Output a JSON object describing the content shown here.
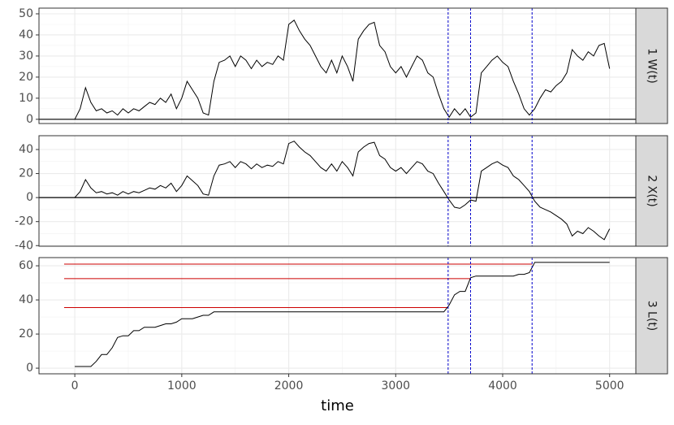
{
  "chart_data": [
    {
      "type": "line",
      "title": "1 W(t)",
      "x": [
        0,
        50,
        100,
        150,
        200,
        250,
        300,
        350,
        400,
        450,
        500,
        550,
        600,
        650,
        700,
        750,
        800,
        850,
        900,
        950,
        1000,
        1050,
        1100,
        1150,
        1200,
        1250,
        1300,
        1350,
        1400,
        1450,
        1500,
        1550,
        1600,
        1650,
        1700,
        1750,
        1800,
        1850,
        1900,
        1950,
        2000,
        2050,
        2100,
        2150,
        2200,
        2250,
        2300,
        2350,
        2400,
        2450,
        2500,
        2550,
        2600,
        2650,
        2700,
        2750,
        2800,
        2850,
        2900,
        2950,
        3000,
        3050,
        3100,
        3150,
        3200,
        3250,
        3300,
        3350,
        3400,
        3450,
        3500,
        3550,
        3600,
        3650,
        3700,
        3750,
        3800,
        3850,
        3900,
        3950,
        4000,
        4050,
        4100,
        4150,
        4200,
        4250,
        4300,
        4350,
        4400,
        4450,
        4500,
        4550,
        4600,
        4650,
        4700,
        4750,
        4800,
        4850,
        4900,
        4950,
        5000
      ],
      "series": [
        {
          "color": "#000000",
          "values": [
            0,
            5,
            15,
            8,
            4,
            5,
            3,
            4,
            2,
            5,
            3,
            5,
            4,
            6,
            8,
            7,
            10,
            8,
            12,
            5,
            10,
            18,
            14,
            10,
            3,
            2,
            18,
            27,
            28,
            30,
            25,
            30,
            28,
            24,
            28,
            25,
            27,
            26,
            30,
            28,
            45,
            47,
            42,
            38,
            35,
            30,
            25,
            22,
            28,
            22,
            30,
            25,
            18,
            38,
            42,
            45,
            46,
            35,
            32,
            25,
            22,
            25,
            20,
            25,
            30,
            28,
            22,
            20,
            12,
            5,
            1,
            5,
            2,
            5,
            1,
            3,
            22,
            25,
            28,
            30,
            27,
            25,
            18,
            12,
            5,
            2,
            5,
            10,
            14,
            13,
            16,
            18,
            22,
            33,
            30,
            28,
            32,
            30,
            35,
            36,
            24
          ]
        }
      ],
      "ylim": [
        -2,
        52.7
      ],
      "yticks": [
        0,
        10,
        20,
        30,
        40,
        50
      ],
      "hline": 0,
      "vlines": [
        3490,
        3700,
        4275
      ],
      "vline_color": "#0000cc"
    },
    {
      "type": "line",
      "title": "2 X(t)",
      "x": [
        0,
        50,
        100,
        150,
        200,
        250,
        300,
        350,
        400,
        450,
        500,
        550,
        600,
        650,
        700,
        750,
        800,
        850,
        900,
        950,
        1000,
        1050,
        1100,
        1150,
        1200,
        1250,
        1300,
        1350,
        1400,
        1450,
        1500,
        1550,
        1600,
        1650,
        1700,
        1750,
        1800,
        1850,
        1900,
        1950,
        2000,
        2050,
        2100,
        2150,
        2200,
        2250,
        2300,
        2350,
        2400,
        2450,
        2500,
        2550,
        2600,
        2650,
        2700,
        2750,
        2800,
        2850,
        2900,
        2950,
        3000,
        3050,
        3100,
        3150,
        3200,
        3250,
        3300,
        3350,
        3400,
        3450,
        3500,
        3550,
        3600,
        3650,
        3700,
        3750,
        3800,
        3850,
        3900,
        3950,
        4000,
        4050,
        4100,
        4150,
        4200,
        4250,
        4300,
        4350,
        4400,
        4450,
        4500,
        4550,
        4600,
        4650,
        4700,
        4750,
        4800,
        4850,
        4900,
        4950,
        5000
      ],
      "series": [
        {
          "color": "#000000",
          "values": [
            0,
            5,
            15,
            8,
            4,
            5,
            3,
            4,
            2,
            5,
            3,
            5,
            4,
            6,
            8,
            7,
            10,
            8,
            12,
            5,
            10,
            18,
            14,
            10,
            3,
            2,
            18,
            27,
            28,
            30,
            25,
            30,
            28,
            24,
            28,
            25,
            27,
            26,
            30,
            28,
            45,
            47,
            42,
            38,
            35,
            30,
            25,
            22,
            28,
            22,
            30,
            25,
            18,
            38,
            42,
            45,
            46,
            35,
            32,
            25,
            22,
            25,
            20,
            25,
            30,
            28,
            22,
            20,
            12,
            5,
            -2,
            -8,
            -9,
            -6,
            -2,
            -3,
            22,
            25,
            28,
            30,
            27,
            25,
            18,
            15,
            10,
            5,
            -3,
            -8,
            -10,
            -12,
            -15,
            -18,
            -22,
            -32,
            -28,
            -30,
            -25,
            -28,
            -32,
            -35,
            -26
          ]
        }
      ],
      "ylim": [
        -40.5,
        51.5
      ],
      "yticks": [
        -40,
        -20,
        0,
        20,
        40
      ],
      "hline": 0,
      "vlines": [
        3490,
        3700,
        4275
      ],
      "vline_color": "#0000cc"
    },
    {
      "type": "line",
      "title": "3 L(t)",
      "xlabel": "time",
      "x": [
        0,
        50,
        100,
        150,
        200,
        250,
        300,
        350,
        400,
        450,
        500,
        550,
        600,
        650,
        700,
        750,
        800,
        850,
        900,
        950,
        1000,
        1050,
        1100,
        1150,
        1200,
        1250,
        1300,
        1350,
        1400,
        1450,
        1500,
        1550,
        1600,
        1650,
        1700,
        1750,
        1800,
        1850,
        1900,
        1950,
        2000,
        2050,
        2100,
        2150,
        2200,
        2250,
        2300,
        2350,
        2400,
        2450,
        2500,
        2550,
        2600,
        2650,
        2700,
        2750,
        2800,
        2850,
        2900,
        2950,
        3000,
        3050,
        3100,
        3150,
        3200,
        3250,
        3300,
        3350,
        3400,
        3450,
        3500,
        3550,
        3600,
        3650,
        3700,
        3750,
        3800,
        3850,
        3900,
        3950,
        4000,
        4050,
        4100,
        4150,
        4200,
        4250,
        4300,
        4350,
        4400,
        4450,
        4500,
        4550,
        4600,
        4650,
        4700,
        4750,
        4800,
        4850,
        4900,
        4950,
        5000
      ],
      "series": [
        {
          "color": "#000000",
          "values": [
            1,
            1,
            1,
            1,
            4,
            8,
            8,
            12,
            18,
            19,
            19,
            22,
            22,
            24,
            24,
            24,
            25,
            26,
            26,
            27,
            29,
            29,
            29,
            30,
            31,
            31,
            33,
            33,
            33,
            33,
            33,
            33,
            33,
            33,
            33,
            33,
            33,
            33,
            33,
            33,
            33,
            33,
            33,
            33,
            33,
            33,
            33,
            33,
            33,
            33,
            33,
            33,
            33,
            33,
            33,
            33,
            33,
            33,
            33,
            33,
            33,
            33,
            33,
            33,
            33,
            33,
            33,
            33,
            33,
            33,
            37,
            43,
            45,
            45,
            53,
            54,
            54,
            54,
            54,
            54,
            54,
            54,
            54,
            55,
            55,
            56,
            62,
            62,
            62,
            62,
            62,
            62,
            62,
            62,
            62,
            62,
            62,
            62,
            62,
            62,
            62
          ]
        }
      ],
      "ylim": [
        -3.3,
        64.8
      ],
      "yticks": [
        0,
        20,
        40,
        60
      ],
      "xlim": [
        -335,
        5245
      ],
      "xticks": [
        0,
        1000,
        2000,
        3000,
        4000,
        5000
      ],
      "hsegments": [
        {
          "y": 61,
          "x_end": 4275
        },
        {
          "y": 52.5,
          "x_end": 3700
        },
        {
          "y": 35.5,
          "x_end": 3490
        }
      ],
      "hsegment_start": -100,
      "hsegment_color": "#cc0000",
      "vlines": [
        3490,
        3700,
        4275
      ],
      "vline_color": "#0000cc"
    }
  ]
}
